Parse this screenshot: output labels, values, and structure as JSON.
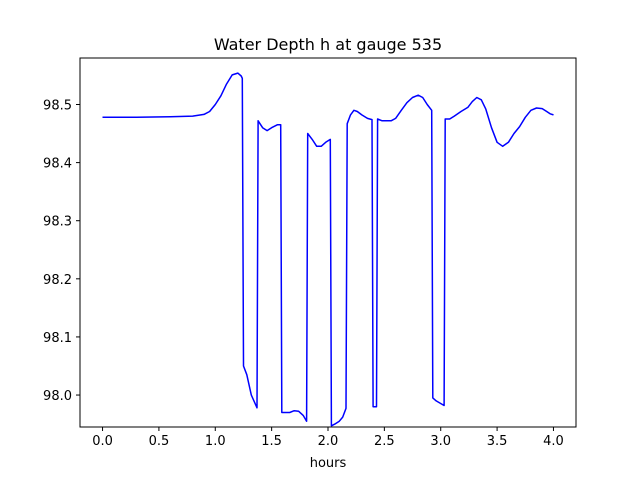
{
  "chart_data": {
    "type": "line",
    "title": "Water Depth h at gauge 535",
    "xlabel": "hours",
    "ylabel": "",
    "xlim": [
      -0.2,
      4.2
    ],
    "ylim": [
      97.945,
      98.58
    ],
    "xticks": [
      0.0,
      0.5,
      1.0,
      1.5,
      2.0,
      2.5,
      3.0,
      3.5,
      4.0
    ],
    "xtick_labels": [
      "0.0",
      "0.5",
      "1.0",
      "1.5",
      "2.0",
      "2.5",
      "3.0",
      "3.5",
      "4.0"
    ],
    "yticks": [
      98.0,
      98.1,
      98.2,
      98.3,
      98.4,
      98.5
    ],
    "ytick_labels": [
      "98.0",
      "98.1",
      "98.2",
      "98.3",
      "98.4",
      "98.5"
    ],
    "grid": false,
    "series": [
      {
        "color": "#0000ff",
        "x": [
          0.0,
          0.3,
          0.6,
          0.8,
          0.9,
          0.95,
          1.0,
          1.05,
          1.1,
          1.15,
          1.2,
          1.23,
          1.24,
          1.25,
          1.28,
          1.32,
          1.37,
          1.38,
          1.42,
          1.46,
          1.5,
          1.55,
          1.58,
          1.59,
          1.62,
          1.66,
          1.7,
          1.74,
          1.78,
          1.81,
          1.82,
          1.86,
          1.9,
          1.94,
          1.98,
          2.02,
          2.03,
          2.06,
          2.1,
          2.13,
          2.16,
          2.17,
          2.2,
          2.23,
          2.26,
          2.3,
          2.35,
          2.39,
          2.4,
          2.43,
          2.44,
          2.48,
          2.52,
          2.56,
          2.6,
          2.65,
          2.7,
          2.75,
          2.8,
          2.84,
          2.88,
          2.92,
          2.93,
          2.96,
          3.03,
          3.04,
          3.08,
          3.12,
          3.18,
          3.24,
          3.28,
          3.32,
          3.36,
          3.4,
          3.45,
          3.5,
          3.55,
          3.6,
          3.65,
          3.7,
          3.75,
          3.8,
          3.85,
          3.9,
          3.94,
          3.97,
          4.0
        ],
        "y": [
          98.478,
          98.478,
          98.479,
          98.48,
          98.483,
          98.488,
          98.5,
          98.515,
          98.535,
          98.551,
          98.554,
          98.549,
          98.545,
          98.05,
          98.035,
          98.0,
          97.978,
          98.472,
          98.46,
          98.455,
          98.46,
          98.465,
          98.465,
          97.97,
          97.97,
          97.97,
          97.973,
          97.972,
          97.965,
          97.955,
          98.45,
          98.44,
          98.428,
          98.428,
          98.435,
          98.44,
          97.947,
          97.95,
          97.955,
          97.962,
          97.977,
          98.467,
          98.482,
          98.49,
          98.488,
          98.482,
          98.476,
          98.474,
          97.98,
          97.98,
          98.475,
          98.472,
          98.472,
          98.472,
          98.476,
          98.49,
          98.503,
          98.512,
          98.516,
          98.512,
          98.5,
          98.49,
          97.995,
          97.99,
          97.982,
          98.475,
          98.475,
          98.48,
          98.488,
          98.495,
          98.505,
          98.512,
          98.508,
          98.492,
          98.46,
          98.435,
          98.428,
          98.435,
          98.45,
          98.462,
          98.478,
          98.49,
          98.494,
          98.493,
          98.488,
          98.484,
          98.482
        ]
      }
    ]
  }
}
